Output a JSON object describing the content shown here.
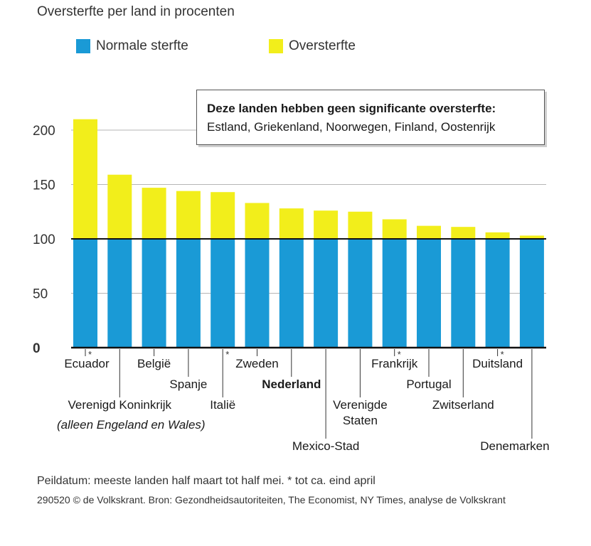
{
  "chart_data": {
    "type": "bar",
    "title": "Oversterfte per land in procenten",
    "legend": {
      "placement": "top-left"
    },
    "series": [
      {
        "name": "Normale sterfte",
        "color": "#1a9ad6",
        "values": [
          100,
          100,
          100,
          100,
          100,
          100,
          100,
          100,
          100,
          100,
          100,
          100,
          100,
          100
        ]
      },
      {
        "name": "Oversterfte",
        "color": "#f2ee1b",
        "values": [
          110,
          59,
          47,
          44,
          43,
          33,
          28,
          26,
          25,
          18,
          12,
          11,
          6,
          3
        ]
      }
    ],
    "totals": [
      210,
      159,
      147,
      144,
      143,
      133,
      128,
      126,
      125,
      118,
      112,
      111,
      106,
      103
    ],
    "categories": [
      "Ecuador",
      "Verenigd Koninkrijk",
      "België",
      "Spanje",
      "Italië",
      "Zweden",
      "Nederland",
      "Mexico-Stad",
      "Verenigde Staten",
      "Frankrijk",
      "Portugal",
      "Zwitserland",
      "Duitsland",
      "Denemarken"
    ],
    "category_notes": [
      "*",
      "",
      "",
      "",
      "*",
      "",
      "",
      "",
      "",
      "*",
      "",
      "",
      "*",
      ""
    ],
    "sublabels": {
      "Verenigd Koninkrijk": "(alleen Engeland en Wales)"
    },
    "highlight": "Nederland",
    "yticks": [
      "0",
      "50",
      "100",
      "150",
      "200"
    ],
    "ylim": [
      0,
      220
    ],
    "reference_line": 100,
    "grid": true,
    "annotation": {
      "title": "Deze landen hebben geen significante oversterfte:",
      "body": "Estland, Griekenland, Noorwegen, Finland, Oostenrijk"
    }
  },
  "footer": {
    "line1": "Peildatum: meeste landen half maart tot half mei. * tot ca. eind april",
    "line2": "290520 © de Volkskrant.  Bron: Gezondheidsautoriteiten, The Economist, NY Times, analyse de Volkskrant"
  }
}
